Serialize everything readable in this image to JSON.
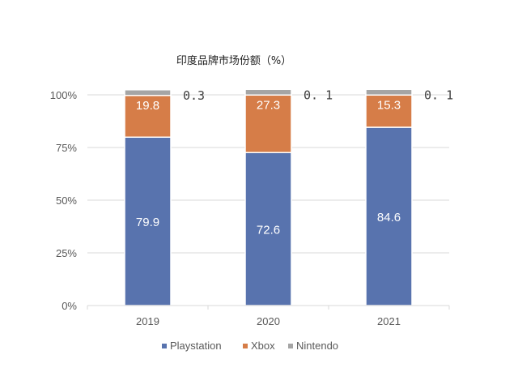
{
  "chart_data": {
    "type": "bar",
    "stacked": true,
    "title": "印度品牌市场份额（%）",
    "xlabel": "",
    "ylabel": "",
    "categories": [
      "2019",
      "2020",
      "2021"
    ],
    "series": [
      {
        "name": "Playstation",
        "color": "#5873AE",
        "values": [
          79.9,
          72.6,
          84.6
        ],
        "labels": [
          "79.9",
          "72.6",
          "84.6"
        ]
      },
      {
        "name": "Xbox",
        "color": "#D67D48",
        "values": [
          19.8,
          27.3,
          15.3
        ],
        "labels": [
          "19.8",
          "27.3",
          "15.3"
        ]
      },
      {
        "name": "Nintendo",
        "color": "#A5A5A5",
        "values": [
          0.3,
          0.1,
          0.1
        ],
        "labels": [
          "0.3",
          "0. 1",
          "0. 1"
        ]
      }
    ],
    "ylim": [
      0,
      100
    ],
    "yticks": [
      "0%",
      "25%",
      "50%",
      "75%",
      "100%"
    ],
    "grid": true,
    "legend": "bottom"
  }
}
